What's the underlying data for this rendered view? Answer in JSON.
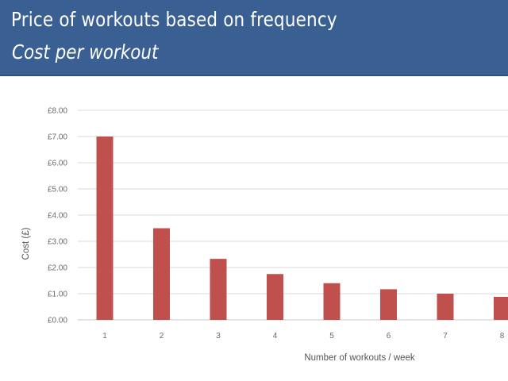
{
  "header": {
    "title": "Price of workouts based on frequency",
    "subtitle": "Cost per workout"
  },
  "colors": {
    "banner": "#3a5f92",
    "bar": "#c0504d",
    "gridline": "#d9d9d9"
  },
  "chart_data": {
    "type": "bar",
    "title": "",
    "xlabel": "Number of workouts / week",
    "ylabel": "Cost (£)",
    "categories": [
      "1",
      "2",
      "3",
      "4",
      "5",
      "6",
      "7",
      "8"
    ],
    "values": [
      7.0,
      3.5,
      2.33,
      1.75,
      1.4,
      1.17,
      1.0,
      0.88
    ],
    "ylim": [
      0,
      8
    ],
    "yticks": [
      0,
      1,
      2,
      3,
      4,
      5,
      6,
      7,
      8
    ],
    "ytick_labels": [
      "£0.00",
      "£1.00",
      "£2.00",
      "£3.00",
      "£4.00",
      "£5.00",
      "£6.00",
      "£7.00",
      "£8.00"
    ],
    "grid": true,
    "legend": "none"
  }
}
